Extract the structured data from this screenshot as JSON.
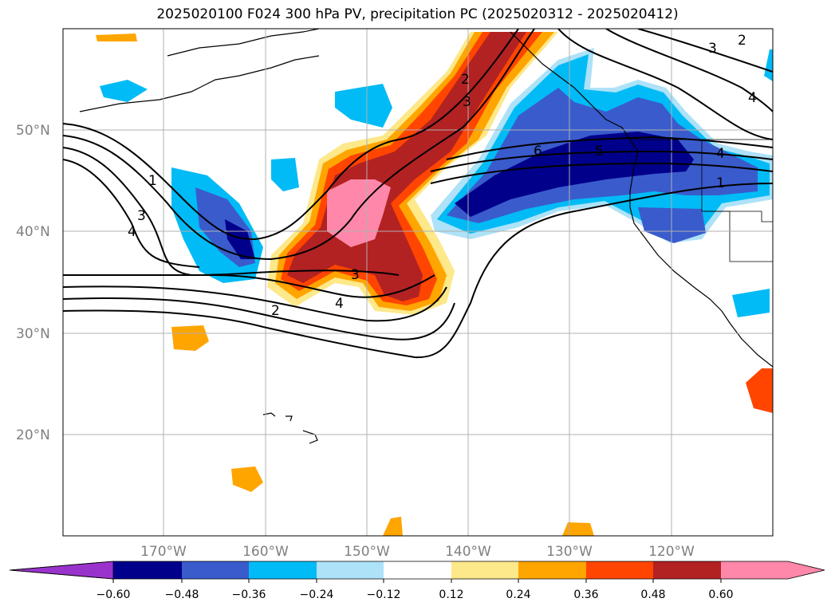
{
  "title": "2025020100 F024 300 hPa PV, precipitation PC (2025020312 - 2025020412)",
  "map": {
    "lat_labels": [
      "50°N",
      "40°N",
      "30°N",
      "20°N"
    ],
    "lon_labels": [
      "170°W",
      "160°W",
      "150°W",
      "140°W",
      "130°W",
      "120°W"
    ],
    "contour_labels": [
      "1",
      "2",
      "3",
      "4",
      "5",
      "6"
    ]
  },
  "colorbar": {
    "ticks": [
      "−0.60",
      "−0.48",
      "−0.36",
      "−0.24",
      "−0.12",
      "0.12",
      "0.24",
      "0.36",
      "0.48",
      "0.60"
    ],
    "colors": [
      "#9933cc",
      "#00008b",
      "#3a5bcc",
      "#00bbf5",
      "#ade2f8",
      "#ffffff",
      "#fde88a",
      "#ffa500",
      "#ff4500",
      "#b22222",
      "#ff88aa"
    ]
  }
}
